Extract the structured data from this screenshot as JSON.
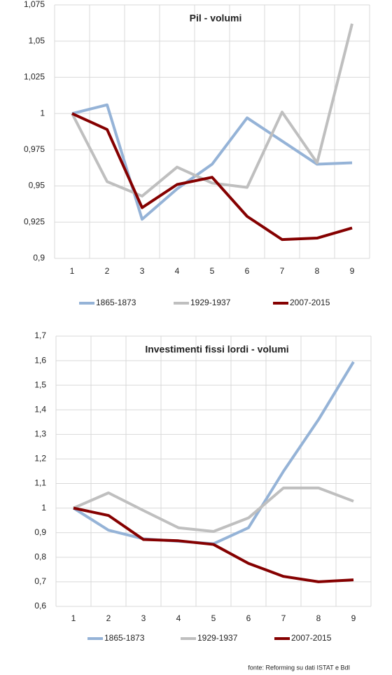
{
  "chart_data": [
    {
      "type": "line",
      "title": "Pil - volumi",
      "categories": [
        1,
        2,
        3,
        4,
        5,
        6,
        7,
        8,
        9
      ],
      "ylim": [
        0.9,
        1.075
      ],
      "yticks": [
        {
          "value": 0.9,
          "label": "0,9"
        },
        {
          "value": 0.925,
          "label": "0,925"
        },
        {
          "value": 0.95,
          "label": "0,95"
        },
        {
          "value": 0.975,
          "label": "0,975"
        },
        1,
        {
          "value": 1.025,
          "label": "1,025"
        },
        {
          "value": 1.05,
          "label": "1,05"
        },
        {
          "value": 1.075,
          "label": "1,075"
        }
      ],
      "grid": true,
      "legend": "bottom",
      "series": [
        {
          "name": "1865-1873",
          "color": "#95b3d7",
          "values": [
            1,
            1.006,
            0.927,
            0.948,
            0.965,
            0.997,
            0.981,
            0.965,
            0.966
          ]
        },
        {
          "name": "1929-1937",
          "color": "#bfbfbf",
          "values": [
            1,
            0.953,
            0.943,
            0.963,
            0.952,
            0.949,
            1.001,
            0.966,
            1.062
          ]
        },
        {
          "name": "2007-2015",
          "color": "#850000",
          "values": [
            1,
            0.989,
            0.935,
            0.951,
            0.956,
            0.929,
            0.913,
            0.914,
            0.921
          ]
        }
      ]
    },
    {
      "type": "line",
      "title": "Investimenti fissi lordi - volumi",
      "categories": [
        1,
        2,
        3,
        4,
        5,
        6,
        7,
        8,
        9
      ],
      "ylim": [
        0.6,
        1.7
      ],
      "yticks": [
        {
          "value": 0.6,
          "label": "0,6"
        },
        {
          "value": 0.7,
          "label": "0,7"
        },
        {
          "value": 0.8,
          "label": "0,8"
        },
        {
          "value": 0.9,
          "label": "0,9"
        },
        1,
        {
          "value": 1.1,
          "label": "1,1"
        },
        {
          "value": 1.2,
          "label": "1,2"
        },
        {
          "value": 1.3,
          "label": "1,3"
        },
        {
          "value": 1.4,
          "label": "1,4"
        },
        {
          "value": 1.5,
          "label": "1,5"
        },
        {
          "value": 1.6,
          "label": "1,6"
        },
        {
          "value": 1.7,
          "label": "1,7"
        }
      ],
      "grid": true,
      "legend": "bottom",
      "series": [
        {
          "name": "1865-1873",
          "color": "#95b3d7",
          "values": [
            1,
            0.91,
            0.875,
            0.865,
            0.855,
            0.92,
            1.15,
            1.36,
            1.595
          ]
        },
        {
          "name": "1929-1937",
          "color": "#bfbfbf",
          "values": [
            1,
            1.062,
            0.99,
            0.92,
            0.905,
            0.96,
            1.082,
            1.082,
            1.028
          ]
        },
        {
          "name": "2007-2015",
          "color": "#850000",
          "values": [
            1,
            0.97,
            0.872,
            0.867,
            0.852,
            0.775,
            0.722,
            0.7,
            0.708
          ]
        }
      ]
    }
  ],
  "source": "fonte: Reforming su dati ISTAT e BdI"
}
